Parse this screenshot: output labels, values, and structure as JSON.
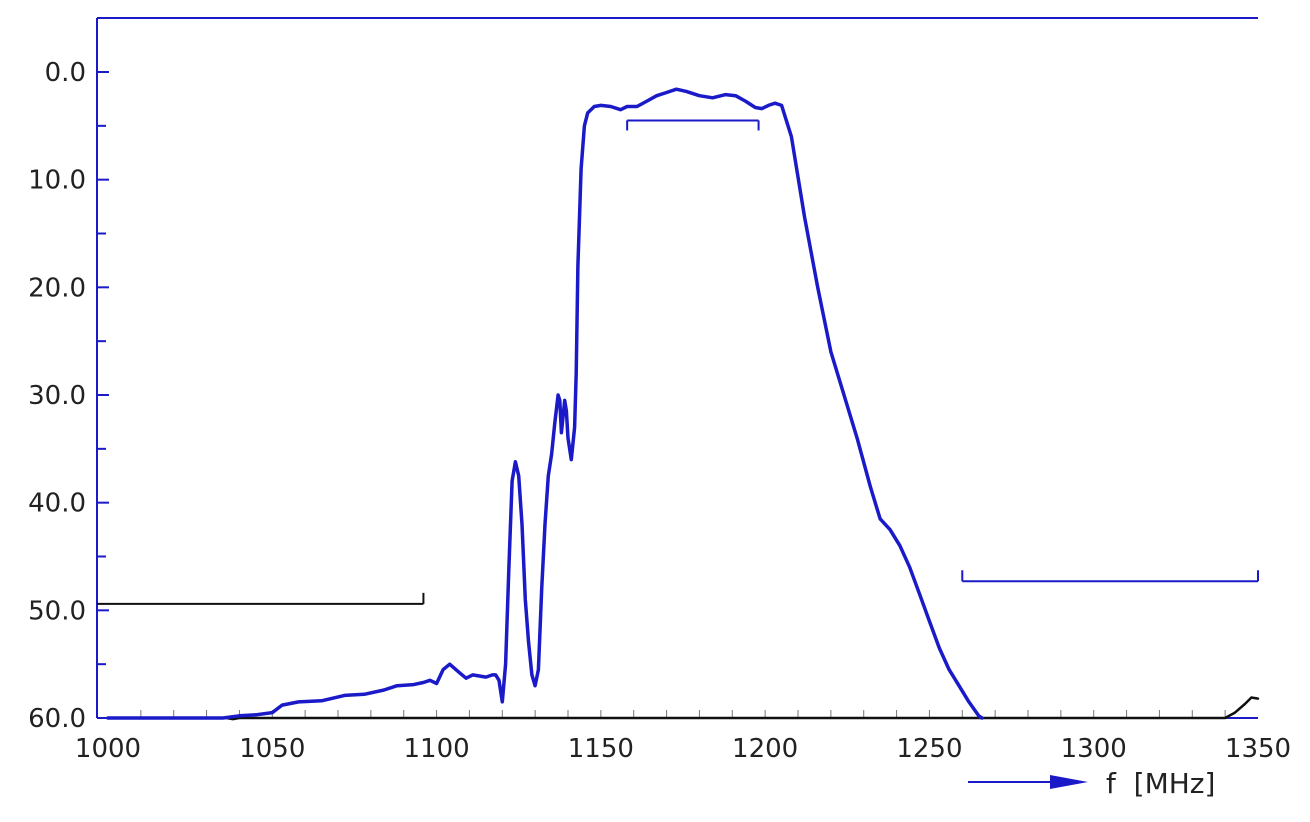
{
  "chart_data": {
    "type": "line",
    "title": "",
    "xlabel": "f  [MHz]",
    "ylabel": "",
    "xlim": [
      1000,
      1350
    ],
    "ylim": [
      60,
      -5
    ],
    "y_inverted": true,
    "grid": false,
    "x_ticks": [
      1000,
      1050,
      1100,
      1150,
      1200,
      1250,
      1300,
      1350
    ],
    "x_tick_labels": [
      "1000",
      "1050",
      "1100",
      "1150",
      "1200",
      "1250",
      "1300",
      "1350"
    ],
    "y_ticks": [
      0,
      10,
      20,
      30,
      40,
      50,
      60
    ],
    "y_tick_labels": [
      "0.0",
      "10.0",
      "20.0",
      "30.0",
      "40.0",
      "50.0",
      "60.0"
    ],
    "series": [
      {
        "color": "#1a1ac8",
        "x": [
          1000,
          1010,
          1020,
          1030,
          1035,
          1040,
          1045,
          1050,
          1053,
          1058,
          1065,
          1072,
          1078,
          1084,
          1088,
          1093,
          1096,
          1098,
          1100,
          1102,
          1104,
          1107,
          1109,
          1111,
          1113,
          1115,
          1117,
          1118,
          1119,
          1120,
          1121,
          1122,
          1123,
          1124,
          1125,
          1126,
          1127,
          1128,
          1129,
          1130,
          1131,
          1132,
          1133,
          1134,
          1135,
          1136,
          1137,
          1137.5,
          1138,
          1139,
          1139.5,
          1140,
          1141,
          1142,
          1142.5,
          1143,
          1144,
          1145,
          1146,
          1148,
          1150,
          1153,
          1156,
          1158,
          1161,
          1164,
          1167,
          1170,
          1173,
          1176,
          1180,
          1184,
          1188,
          1191,
          1194,
          1197,
          1199,
          1201,
          1203,
          1205,
          1208,
          1212,
          1216,
          1220,
          1224,
          1228,
          1232,
          1235,
          1238,
          1241,
          1244,
          1247,
          1250,
          1253,
          1256,
          1259,
          1262,
          1265,
          1266
        ],
        "values": [
          60,
          60,
          60,
          60,
          60,
          59.8,
          59.7,
          59.5,
          58.8,
          58.5,
          58.4,
          57.9,
          57.8,
          57.4,
          57,
          56.9,
          56.7,
          56.5,
          56.8,
          55.5,
          55,
          55.8,
          56.3,
          56,
          56.1,
          56.2,
          56,
          56,
          56.5,
          58.5,
          55,
          46,
          38,
          36.2,
          37.5,
          42,
          49,
          53,
          56,
          57,
          55.5,
          48,
          42,
          37.5,
          35.5,
          32.5,
          30,
          30.5,
          33.5,
          30.5,
          31.5,
          34,
          36,
          33,
          28,
          18,
          9,
          5,
          3.8,
          3.2,
          3.1,
          3.2,
          3.5,
          3.2,
          3.2,
          2.7,
          2.2,
          1.9,
          1.6,
          1.8,
          2.2,
          2.4,
          2.1,
          2.2,
          2.7,
          3.3,
          3.4,
          3.1,
          2.9,
          3.1,
          6,
          13.5,
          20,
          26,
          30,
          34,
          38.5,
          41.5,
          42.5,
          44,
          46,
          48.5,
          51,
          53.5,
          55.5,
          57,
          58.5,
          59.8,
          60
        ]
      },
      {
        "color": "#111111",
        "x": [
          1036,
          1038,
          1040,
          1340,
          1343,
          1346,
          1348,
          1350
        ],
        "values": [
          60,
          60.1,
          60,
          60,
          59.5,
          58.7,
          58.1,
          58.2
        ]
      }
    ],
    "limit_lines": [
      {
        "x_range": [
          1000,
          1096
        ],
        "value": 49.4,
        "color": "#111111"
      },
      {
        "x_range": [
          1158,
          1198
        ],
        "value": 4.5,
        "color": "#1a1ac8"
      },
      {
        "x_range": [
          1260,
          1350
        ],
        "value": 47.3,
        "color": "#1a1ac8"
      }
    ],
    "colors": {
      "axis": "#1a1ac8",
      "trace": "#1a1ac8",
      "limit_low": "#111111",
      "text": "#222222"
    }
  }
}
